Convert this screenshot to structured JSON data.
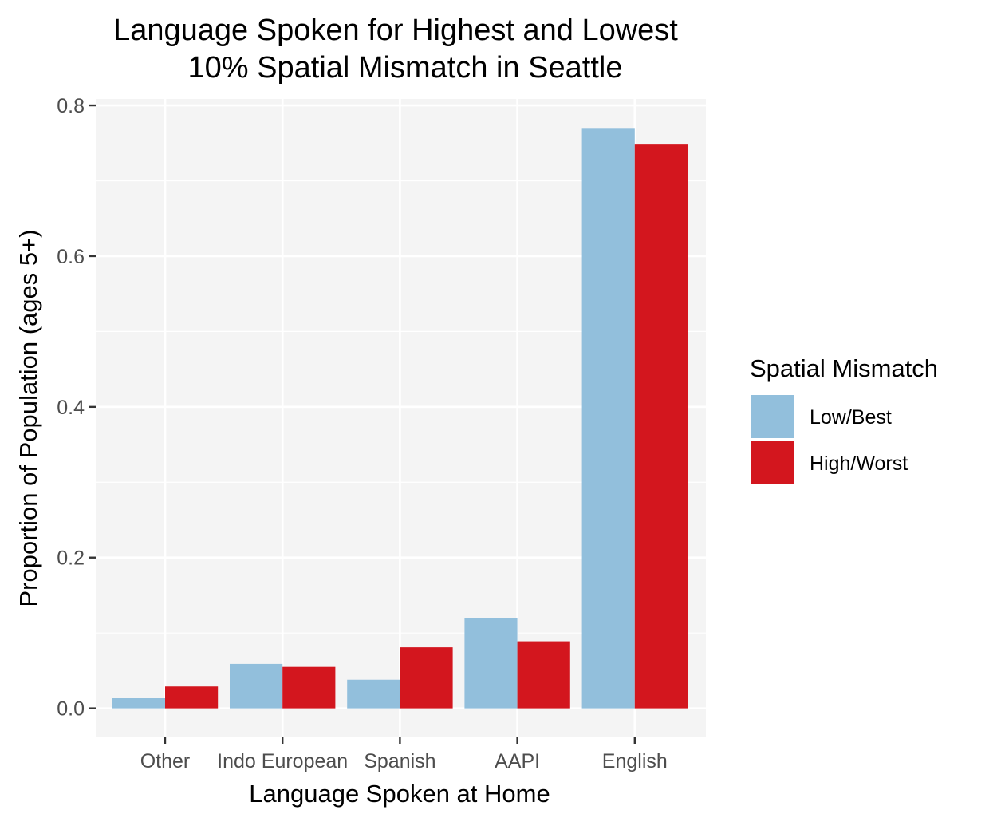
{
  "chart_data": {
    "type": "bar",
    "title_lines": [
      "Language Spoken for Highest and Lowest",
      "10% Spatial Mismatch in Seattle"
    ],
    "xlabel": "Language Spoken at Home",
    "ylabel": "Proportion of Population (ages 5+)",
    "categories": [
      "Other",
      "Indo European",
      "Spanish",
      "AAPI",
      "English"
    ],
    "series": [
      {
        "name": "Low/Best",
        "color": "#92bfdc",
        "values": [
          0.014,
          0.059,
          0.038,
          0.12,
          0.769
        ]
      },
      {
        "name": "High/Worst",
        "color": "#d3161e",
        "values": [
          0.029,
          0.055,
          0.081,
          0.089,
          0.748
        ]
      }
    ],
    "ylim": [
      -0.0385,
      0.8085
    ],
    "yticks": [
      0.0,
      0.2,
      0.4,
      0.6,
      0.8
    ],
    "ytick_labels": [
      "0.0",
      "0.2",
      "0.4",
      "0.6",
      "0.8"
    ],
    "grid": true,
    "legend": {
      "title": "Spatial Mismatch",
      "position": "right"
    },
    "panel_color": "#f4f4f4"
  }
}
